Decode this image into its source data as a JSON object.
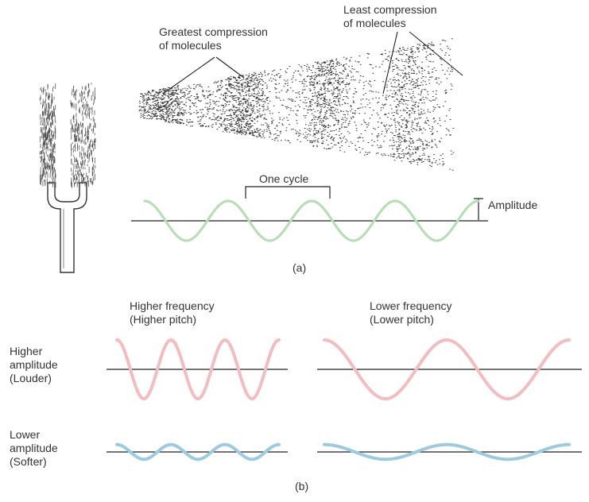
{
  "figure": {
    "part_a": {
      "greatest_compression": "Greatest compression\nof molecules",
      "least_compression": "Least compression\nof molecules",
      "one_cycle": "One cycle",
      "amplitude": "Amplitude",
      "label": "(a)"
    },
    "part_b": {
      "higher_frequency": "Higher frequency\n(Higher pitch)",
      "lower_frequency": "Lower frequency\n(Lower pitch)",
      "higher_amplitude": "Higher\namplitude\n(Louder)",
      "lower_amplitude": "Lower\namplitude\n(Softer)",
      "label": "(b)"
    }
  },
  "colors": {
    "wave_a": "#b9ddb7",
    "wave_loud": "#f2bcc0",
    "wave_soft": "#9ccbe0",
    "axis": "#222222",
    "dots": "#333333"
  },
  "waves": {
    "a": {
      "cycles": 4,
      "relative_amplitude": 1.0
    },
    "higher_frequency_louder": {
      "cycles": 3,
      "relative_amplitude": 1.0
    },
    "lower_frequency_louder": {
      "cycles": 2,
      "relative_amplitude": 1.0
    },
    "higher_frequency_softer": {
      "cycles": 3,
      "relative_amplitude": 0.25
    },
    "lower_frequency_softer": {
      "cycles": 2,
      "relative_amplitude": 0.25
    }
  }
}
